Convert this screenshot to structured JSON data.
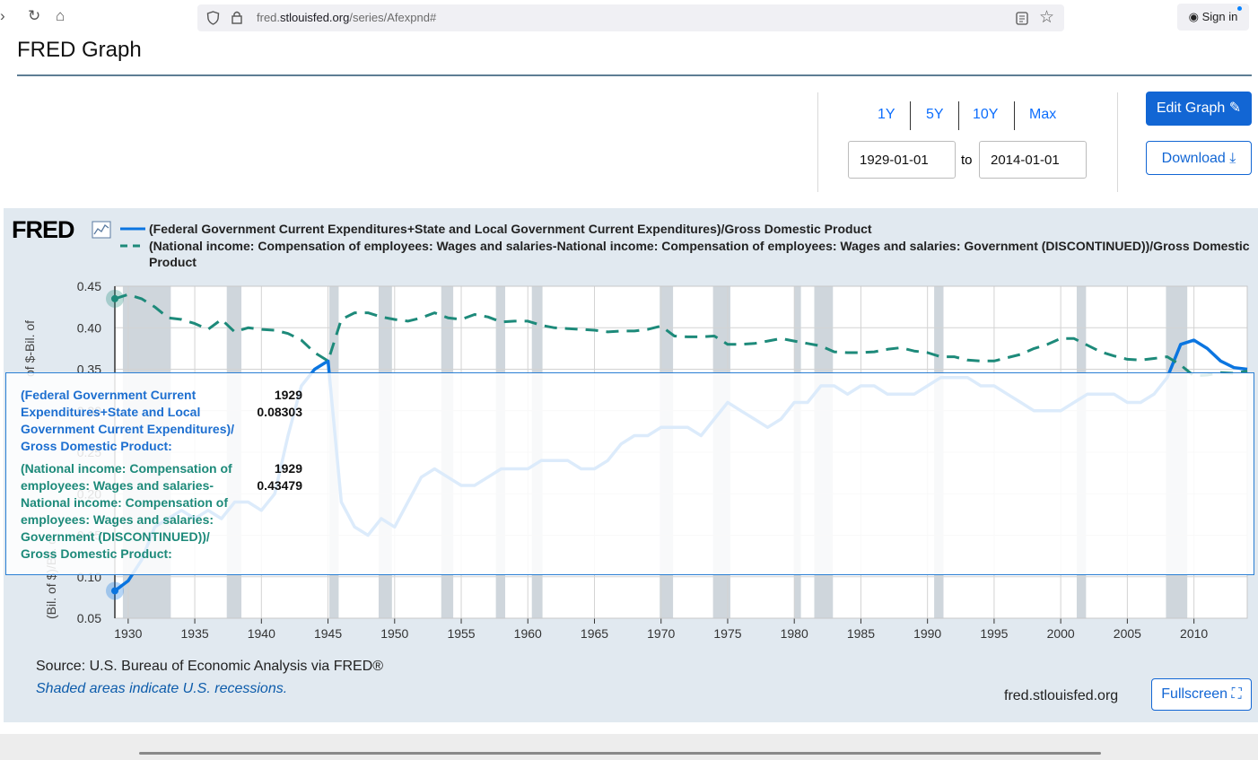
{
  "browser": {
    "url_prefix": "fred.",
    "url_domain": "stlouisfed.org",
    "url_path": "/series/Afexpnd#",
    "signin_label": "Sign in"
  },
  "page": {
    "title": "FRED Graph"
  },
  "controls": {
    "ranges": [
      "1Y",
      "5Y",
      "10Y",
      "Max"
    ],
    "start_date": "1929-01-01",
    "end_date": "2014-01-01",
    "to_label": "to",
    "edit_label": "Edit Graph",
    "download_label": "Download"
  },
  "footer": {
    "source": "Source: U.S. Bureau of Economic Analysis via FRED®",
    "recession_note": "Shaded areas indicate U.S. recessions.",
    "site": "fred.stlouisfed.org",
    "fullscreen_label": "Fullscreen"
  },
  "tooltip": {
    "s1_label": "(Federal Government Current Expenditures+State and Local Government Current Expenditures)/ Gross Domestic Product:",
    "s1_date": "1929",
    "s1_value": "0.08303",
    "s2_label": "(National income: Compensation of employees: Wages and salaries- National income: Compensation of employees: Wages and salaries: Government (DISCONTINUED))/ Gross Domestic Product:",
    "s2_date": "1929",
    "s2_value": "0.43479"
  },
  "colors": {
    "series1": "#0b75e0",
    "series2": "#1d8a7a",
    "panel": "#e1e9f0",
    "recession": "#cfd6dc",
    "accent": "#1266d4"
  },
  "chart_data": {
    "type": "line",
    "logo": "FRED",
    "ylabel_fragment": "of $-Bil. of",
    "ylabel_fragment_2": "(Bil. of $)/Bil. o",
    "xlim": [
      1929,
      2014
    ],
    "ylim": [
      0.05,
      0.45
    ],
    "x_ticks": [
      1930,
      1935,
      1940,
      1945,
      1950,
      1955,
      1960,
      1965,
      1970,
      1975,
      1980,
      1985,
      1990,
      1995,
      2000,
      2005,
      2010
    ],
    "y_ticks": [
      0.05,
      0.1,
      0.15,
      0.2,
      0.25,
      0.3,
      0.35,
      0.4,
      0.45
    ],
    "y_tick_labels": [
      "0.05",
      "0.10",
      "0.15",
      "0.20",
      "0.25",
      "0.30",
      "0.35",
      "0.40",
      "0.45"
    ],
    "recessions": [
      [
        1929.6,
        1933.2
      ],
      [
        1937.4,
        1938.5
      ],
      [
        1945.1,
        1945.8
      ],
      [
        1948.8,
        1949.8
      ],
      [
        1953.5,
        1954.4
      ],
      [
        1957.6,
        1958.3
      ],
      [
        1960.3,
        1961.1
      ],
      [
        1969.9,
        1970.9
      ],
      [
        1973.9,
        1975.2
      ],
      [
        1980.0,
        1980.5
      ],
      [
        1981.5,
        1982.9
      ],
      [
        1990.5,
        1991.2
      ],
      [
        2001.2,
        2001.9
      ],
      [
        2007.9,
        2009.5
      ]
    ],
    "series": [
      {
        "name": "(Federal Government Current Expenditures+State and Local Government Current Expenditures)/Gross Domestic Product",
        "style": "solid",
        "x": [
          1929,
          1930,
          1931,
          1932,
          1933,
          1934,
          1935,
          1936,
          1937,
          1938,
          1939,
          1940,
          1941,
          1942,
          1943,
          1944,
          1945,
          1946,
          1947,
          1948,
          1949,
          1950,
          1951,
          1952,
          1953,
          1954,
          1955,
          1956,
          1957,
          1958,
          1959,
          1960,
          1961,
          1962,
          1963,
          1964,
          1965,
          1966,
          1967,
          1968,
          1969,
          1970,
          1971,
          1972,
          1973,
          1974,
          1975,
          1976,
          1977,
          1978,
          1979,
          1980,
          1981,
          1982,
          1983,
          1984,
          1985,
          1986,
          1987,
          1988,
          1989,
          1990,
          1991,
          1992,
          1993,
          1994,
          1995,
          1996,
          1997,
          1998,
          1999,
          2000,
          2001,
          2002,
          2003,
          2004,
          2005,
          2006,
          2007,
          2008,
          2009,
          2010,
          2011,
          2012,
          2013,
          2014
        ],
        "values": [
          0.083,
          0.095,
          0.12,
          0.16,
          0.17,
          0.18,
          0.17,
          0.18,
          0.17,
          0.19,
          0.19,
          0.18,
          0.2,
          0.27,
          0.33,
          0.35,
          0.36,
          0.19,
          0.16,
          0.15,
          0.17,
          0.16,
          0.19,
          0.22,
          0.23,
          0.22,
          0.21,
          0.21,
          0.22,
          0.23,
          0.23,
          0.23,
          0.24,
          0.24,
          0.24,
          0.23,
          0.23,
          0.24,
          0.26,
          0.27,
          0.27,
          0.28,
          0.28,
          0.28,
          0.27,
          0.29,
          0.31,
          0.3,
          0.29,
          0.28,
          0.29,
          0.31,
          0.31,
          0.33,
          0.33,
          0.32,
          0.33,
          0.33,
          0.32,
          0.32,
          0.32,
          0.33,
          0.34,
          0.34,
          0.34,
          0.33,
          0.33,
          0.32,
          0.31,
          0.3,
          0.3,
          0.3,
          0.31,
          0.32,
          0.32,
          0.32,
          0.31,
          0.31,
          0.32,
          0.34,
          0.38,
          0.385,
          0.375,
          0.36,
          0.352,
          0.35
        ]
      },
      {
        "name": "(National income: Compensation of employees: Wages and salaries-National income: Compensation of employees: Wages and salaries: Government (DISCONTINUED))/Gross Domestic Product",
        "style": "dashed",
        "x": [
          1929,
          1930,
          1931,
          1932,
          1933,
          1934,
          1935,
          1936,
          1937,
          1938,
          1939,
          1940,
          1941,
          1942,
          1943,
          1944,
          1945,
          1946,
          1947,
          1948,
          1949,
          1950,
          1951,
          1952,
          1953,
          1954,
          1955,
          1956,
          1957,
          1958,
          1959,
          1960,
          1961,
          1962,
          1963,
          1964,
          1965,
          1966,
          1967,
          1968,
          1969,
          1970,
          1971,
          1972,
          1973,
          1974,
          1975,
          1976,
          1977,
          1978,
          1979,
          1980,
          1981,
          1982,
          1983,
          1984,
          1985,
          1986,
          1987,
          1988,
          1989,
          1990,
          1991,
          1992,
          1993,
          1994,
          1995,
          1996,
          1997,
          1998,
          1999,
          2000,
          2001,
          2002,
          2003,
          2004,
          2005,
          2006,
          2007,
          2008,
          2009,
          2010,
          2011,
          2012,
          2013,
          2014
        ],
        "values": [
          0.435,
          0.44,
          0.435,
          0.425,
          0.412,
          0.41,
          0.405,
          0.398,
          0.41,
          0.395,
          0.4,
          0.398,
          0.397,
          0.393,
          0.385,
          0.37,
          0.36,
          0.41,
          0.418,
          0.418,
          0.413,
          0.41,
          0.408,
          0.412,
          0.418,
          0.412,
          0.41,
          0.416,
          0.413,
          0.407,
          0.408,
          0.408,
          0.403,
          0.4,
          0.399,
          0.398,
          0.397,
          0.395,
          0.396,
          0.396,
          0.398,
          0.402,
          0.39,
          0.389,
          0.389,
          0.39,
          0.38,
          0.38,
          0.381,
          0.384,
          0.387,
          0.384,
          0.381,
          0.378,
          0.371,
          0.37,
          0.37,
          0.371,
          0.374,
          0.376,
          0.372,
          0.37,
          0.365,
          0.365,
          0.361,
          0.36,
          0.36,
          0.364,
          0.368,
          0.375,
          0.38,
          0.387,
          0.387,
          0.379,
          0.371,
          0.366,
          0.362,
          0.361,
          0.363,
          0.365,
          0.355,
          0.342,
          0.343,
          0.346,
          0.345,
          0.348
        ]
      }
    ]
  }
}
